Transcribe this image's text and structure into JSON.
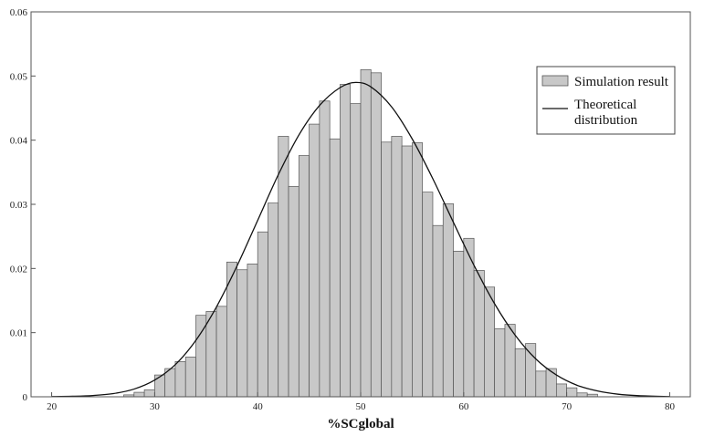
{
  "chart_data": {
    "type": "bar",
    "title": "",
    "xlabel": "%SCglobal",
    "ylabel": "",
    "xlim": [
      18,
      82
    ],
    "ylim": [
      0,
      0.06
    ],
    "x_ticks": [
      "20",
      "30",
      "40",
      "50",
      "60",
      "70",
      "80"
    ],
    "x_tick_values": [
      20,
      30,
      40,
      50,
      60,
      70,
      80
    ],
    "y_ticks": [
      "0",
      "0.01",
      "0.02",
      "0.03",
      "0.04",
      "0.05",
      "0.06"
    ],
    "y_tick_values": [
      0,
      0.01,
      0.02,
      0.03,
      0.04,
      0.05,
      0.06
    ],
    "grid": false,
    "legend_position": "top-right",
    "bin_width": 1,
    "series": [
      {
        "name": "Simulation result",
        "kind": "histogram",
        "color": "#c8c8c8",
        "bin_starts": [
          27,
          28,
          29,
          30,
          31,
          32,
          33,
          34,
          35,
          36,
          37,
          38,
          39,
          40,
          41,
          42,
          43,
          44,
          45,
          46,
          47,
          48,
          49,
          50,
          51,
          52,
          53,
          54,
          55,
          56,
          57,
          58,
          59,
          60,
          61,
          62,
          63,
          64,
          65,
          66,
          67,
          68,
          69,
          70,
          71,
          72
        ],
        "values": [
          0.0003,
          0.0007,
          0.0011,
          0.0034,
          0.0044,
          0.0055,
          0.0062,
          0.0127,
          0.0133,
          0.0141,
          0.021,
          0.0198,
          0.0207,
          0.0257,
          0.0302,
          0.0406,
          0.0328,
          0.0376,
          0.0425,
          0.0461,
          0.0402,
          0.0487,
          0.0457,
          0.051,
          0.0505,
          0.0397,
          0.0406,
          0.0391,
          0.0396,
          0.0319,
          0.0267,
          0.0301,
          0.0227,
          0.0247,
          0.0197,
          0.0171,
          0.0106,
          0.0113,
          0.0075,
          0.0083,
          0.004,
          0.0044,
          0.002,
          0.0014,
          0.0006,
          0.0004
        ]
      },
      {
        "name": "Theoretical distribution",
        "kind": "line",
        "color": "#111111",
        "x": [
          20,
          22,
          24,
          26,
          28,
          30,
          32,
          34,
          36,
          38,
          40,
          42,
          44,
          46,
          48,
          49.5,
          51,
          53,
          55,
          57,
          59,
          61,
          63,
          65,
          67,
          69,
          71,
          73,
          75,
          77,
          80
        ],
        "values": [
          3e-05,
          8e-05,
          0.0002,
          0.0005,
          0.0012,
          0.0026,
          0.005,
          0.0088,
          0.014,
          0.0204,
          0.0275,
          0.0346,
          0.0408,
          0.0454,
          0.0482,
          0.049,
          0.0483,
          0.0452,
          0.0402,
          0.034,
          0.0272,
          0.0205,
          0.0145,
          0.0096,
          0.0059,
          0.0034,
          0.0018,
          0.0009,
          0.0004,
          0.00017,
          3e-05
        ]
      }
    ]
  }
}
